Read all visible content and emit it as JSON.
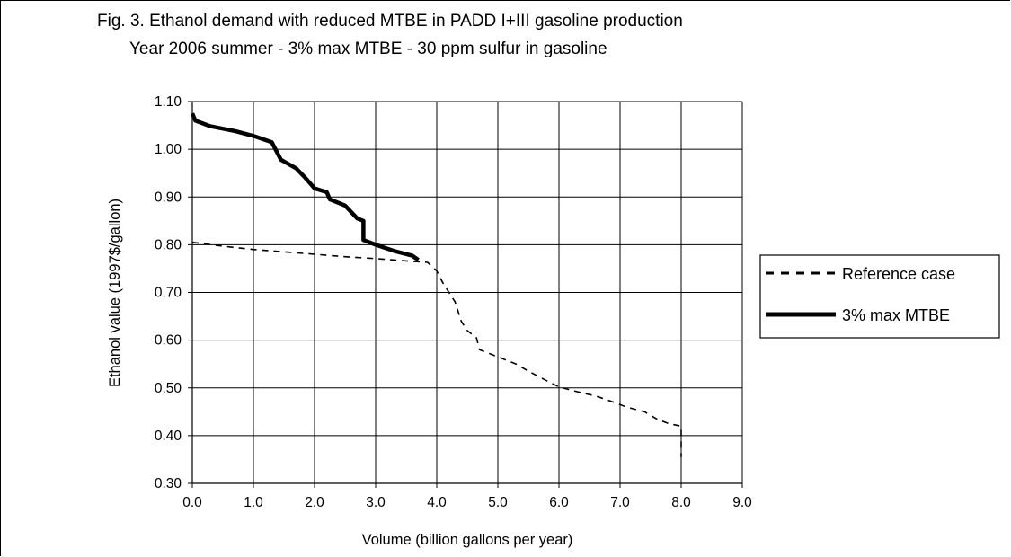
{
  "figure": {
    "title_line1": "Fig. 3. Ethanol demand with reduced MTBE in PADD I+III gasoline production",
    "title_line2": "Year 2006 summer - 3% max MTBE - 30 ppm sulfur in gasoline"
  },
  "chart_data": {
    "type": "line",
    "xlabel": "Volume (billion gallons per year)",
    "ylabel": "Ethanol value (1997$/gallon)",
    "xlim": [
      0,
      9
    ],
    "ylim": [
      0.3,
      1.1
    ],
    "xticks": [
      "0.0",
      "1.0",
      "2.0",
      "3.0",
      "4.0",
      "5.0",
      "6.0",
      "7.0",
      "8.0",
      "9.0"
    ],
    "yticks": [
      "0.30",
      "0.40",
      "0.50",
      "0.60",
      "0.70",
      "0.80",
      "0.90",
      "1.00",
      "1.10"
    ],
    "grid": true,
    "legend_position": "right",
    "series": [
      {
        "name": "Reference case",
        "style": "dashed",
        "color": "#000000",
        "points": [
          [
            0.0,
            0.805
          ],
          [
            0.5,
            0.797
          ],
          [
            1.0,
            0.79
          ],
          [
            1.5,
            0.785
          ],
          [
            2.0,
            0.78
          ],
          [
            2.5,
            0.775
          ],
          [
            3.0,
            0.771
          ],
          [
            3.5,
            0.766
          ],
          [
            3.85,
            0.763
          ],
          [
            4.0,
            0.745
          ],
          [
            4.1,
            0.72
          ],
          [
            4.2,
            0.7
          ],
          [
            4.3,
            0.68
          ],
          [
            4.4,
            0.64
          ],
          [
            4.5,
            0.62
          ],
          [
            4.65,
            0.605
          ],
          [
            4.7,
            0.58
          ],
          [
            4.8,
            0.575
          ],
          [
            5.0,
            0.565
          ],
          [
            5.3,
            0.55
          ],
          [
            5.5,
            0.535
          ],
          [
            5.8,
            0.515
          ],
          [
            6.0,
            0.502
          ],
          [
            6.3,
            0.492
          ],
          [
            6.6,
            0.483
          ],
          [
            6.9,
            0.47
          ],
          [
            7.1,
            0.46
          ],
          [
            7.4,
            0.45
          ],
          [
            7.6,
            0.435
          ],
          [
            7.8,
            0.425
          ],
          [
            8.0,
            0.42
          ],
          [
            8.0,
            0.355
          ]
        ]
      },
      {
        "name": "3% max MTBE",
        "style": "solid",
        "color": "#000000",
        "points": [
          [
            0.0,
            1.075
          ],
          [
            0.05,
            1.06
          ],
          [
            0.3,
            1.048
          ],
          [
            0.7,
            1.038
          ],
          [
            1.0,
            1.028
          ],
          [
            1.3,
            1.015
          ],
          [
            1.45,
            0.978
          ],
          [
            1.7,
            0.96
          ],
          [
            1.85,
            0.94
          ],
          [
            2.0,
            0.918
          ],
          [
            2.2,
            0.91
          ],
          [
            2.25,
            0.895
          ],
          [
            2.5,
            0.882
          ],
          [
            2.7,
            0.855
          ],
          [
            2.8,
            0.85
          ],
          [
            2.8,
            0.81
          ],
          [
            3.0,
            0.8
          ],
          [
            3.3,
            0.787
          ],
          [
            3.6,
            0.777
          ],
          [
            3.7,
            0.768
          ]
        ]
      }
    ]
  }
}
